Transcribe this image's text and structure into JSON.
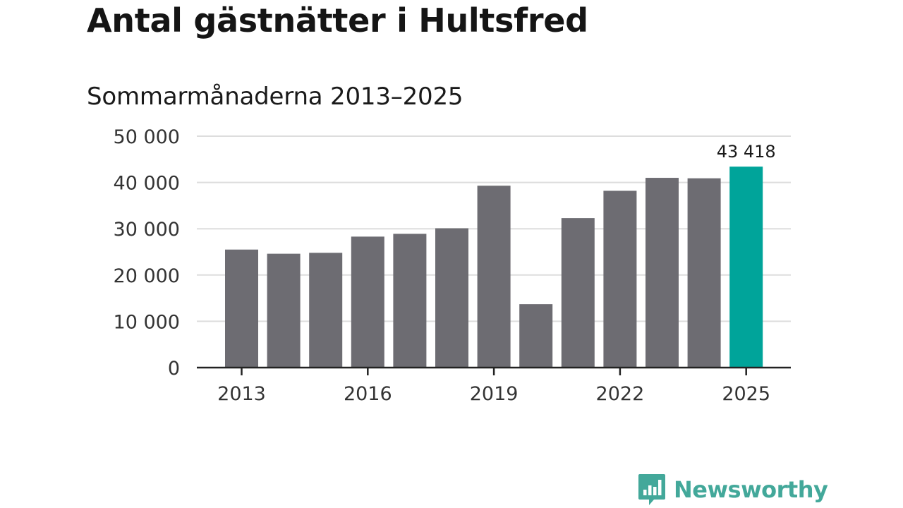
{
  "title": "Antal gästnätter i Hultsfred",
  "subtitle": "Sommarmånaderna 2013–2025",
  "brand": {
    "name": "Newsworthy",
    "icon": "newsworthy-logo-icon",
    "color": "#43a89a"
  },
  "colors": {
    "bar": "#6d6c72",
    "highlight": "#00a49a",
    "grid": "#dddddd",
    "axis": "#222222"
  },
  "chart_data": {
    "type": "bar",
    "categories": [
      "2013",
      "2014",
      "2015",
      "2016",
      "2017",
      "2018",
      "2019",
      "2020",
      "2021",
      "2022",
      "2023",
      "2024",
      "2025"
    ],
    "values": [
      25500,
      24600,
      24800,
      28300,
      28900,
      30100,
      39300,
      13700,
      32300,
      38200,
      41000,
      40900,
      43418
    ],
    "highlight_index": 12,
    "data_label": {
      "index": 12,
      "text": "43 418"
    },
    "ylim": [
      0,
      50000
    ],
    "yticks": [
      0,
      10000,
      20000,
      30000,
      40000,
      50000
    ],
    "ytick_labels": [
      "0",
      "10 000",
      "20 000",
      "30 000",
      "40 000",
      "50 000"
    ],
    "xtick_labels": [
      "2013",
      "2016",
      "2019",
      "2022",
      "2025"
    ],
    "xtick_indices": [
      0,
      3,
      6,
      9,
      12
    ],
    "grid": true,
    "xlabel": "",
    "ylabel": ""
  }
}
